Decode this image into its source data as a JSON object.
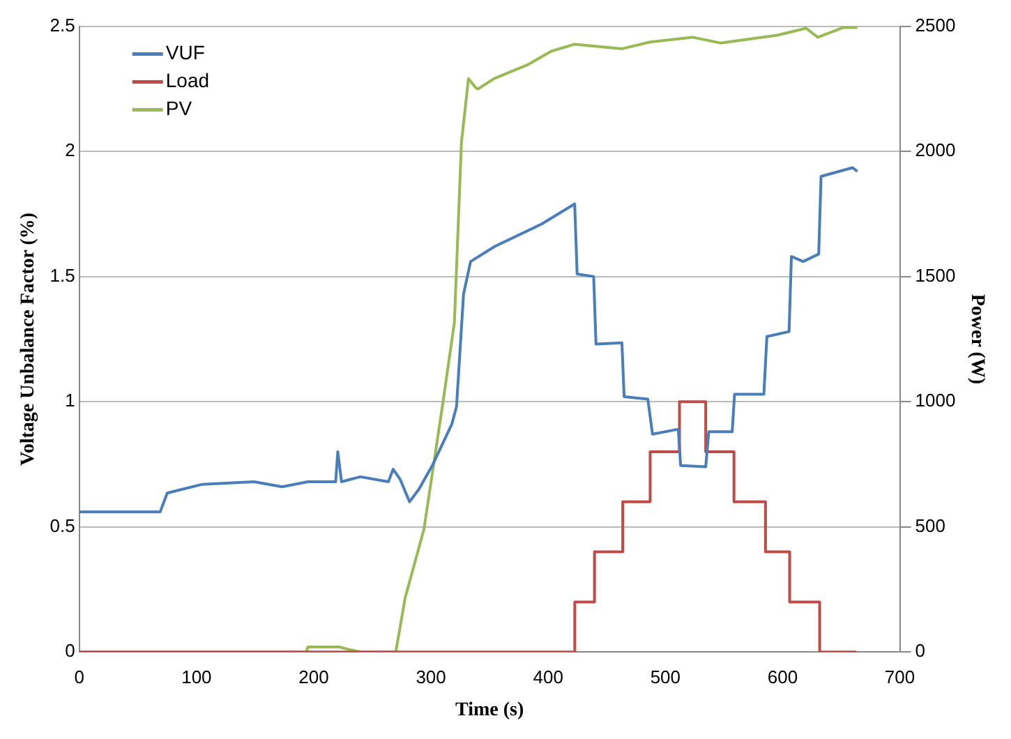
{
  "chart_data": {
    "type": "line",
    "xlabel": "Time (s)",
    "ylabel": "Voltage Unbalance Factor (%)",
    "y2label": "Power (W)",
    "xlim": [
      0,
      700
    ],
    "xticks": [
      0,
      100,
      200,
      300,
      400,
      500,
      600,
      700
    ],
    "ylim": [
      0,
      2.5
    ],
    "yticks": [
      0,
      0.5,
      1,
      1.5,
      2,
      2.5
    ],
    "y2lim": [
      0,
      2500
    ],
    "y2ticks": [
      0,
      500,
      1000,
      1500,
      2000,
      2500
    ],
    "grid": "y",
    "legend": "top left",
    "marker": "none",
    "series": [
      {
        "name": "VUF",
        "color": "#4a7ebb",
        "type": "line",
        "x": [
          0,
          69,
          75,
          105,
          149,
          173,
          195,
          218.7,
          220.5,
          223.7,
          239.7,
          263.7,
          267.7,
          273.7,
          281.7,
          289.7,
          301.7,
          317.8,
          321.8,
          327.8,
          333.8,
          354.4,
          394.5,
          422.6,
          424.7,
          438.8,
          440.8,
          462.9,
          464.8,
          485,
          489,
          511,
          513,
          534.4,
          537,
          557,
          559,
          584,
          586.6,
          605.5,
          607.5,
          617.5,
          630.8,
          632.8,
          659.7,
          663.7
        ],
        "values": [
          0.56,
          0.56,
          0.635,
          0.67,
          0.68,
          0.66,
          0.68,
          0.68,
          0.8,
          0.68,
          0.7,
          0.68,
          0.73,
          0.69,
          0.6,
          0.65,
          0.75,
          0.91,
          0.98,
          1.43,
          1.56,
          1.62,
          1.71,
          1.79,
          1.51,
          1.5,
          1.23,
          1.235,
          1.02,
          1.01,
          0.87,
          0.89,
          0.745,
          0.74,
          0.88,
          0.88,
          1.03,
          1.03,
          1.26,
          1.28,
          1.58,
          1.56,
          1.59,
          1.9,
          1.935,
          1.92
        ]
      },
      {
        "name": "Load",
        "color": "#be4b48",
        "type": "step",
        "axis": "y2",
        "x": [
          0,
          422.7,
          439.5,
          463.6,
          487,
          512,
          534.4,
          558.5,
          585.4,
          606,
          631.6,
          663
        ],
        "values": [
          0,
          200,
          400,
          600,
          800,
          1000,
          800,
          600,
          400,
          200,
          0,
          0
        ]
      },
      {
        "name": "PV",
        "color": "#98b954",
        "type": "line",
        "axis": "y2",
        "x": [
          0,
          193.6,
          195,
          221.8,
          230,
          240,
          270,
          278,
          294,
          310,
          320,
          326,
          332,
          338,
          340,
          354,
          382.5,
          402.6,
          422.6,
          463,
          487,
          523,
          547,
          595.5,
          620,
          630,
          652,
          663.7
        ],
        "values": [
          0,
          0,
          20,
          20,
          10,
          0,
          0,
          217,
          490,
          990,
          1317,
          2036,
          2291,
          2255,
          2249,
          2291,
          2346,
          2400,
          2428,
          2410,
          2437,
          2456,
          2433,
          2464,
          2492,
          2456,
          2495,
          2495
        ]
      }
    ]
  }
}
